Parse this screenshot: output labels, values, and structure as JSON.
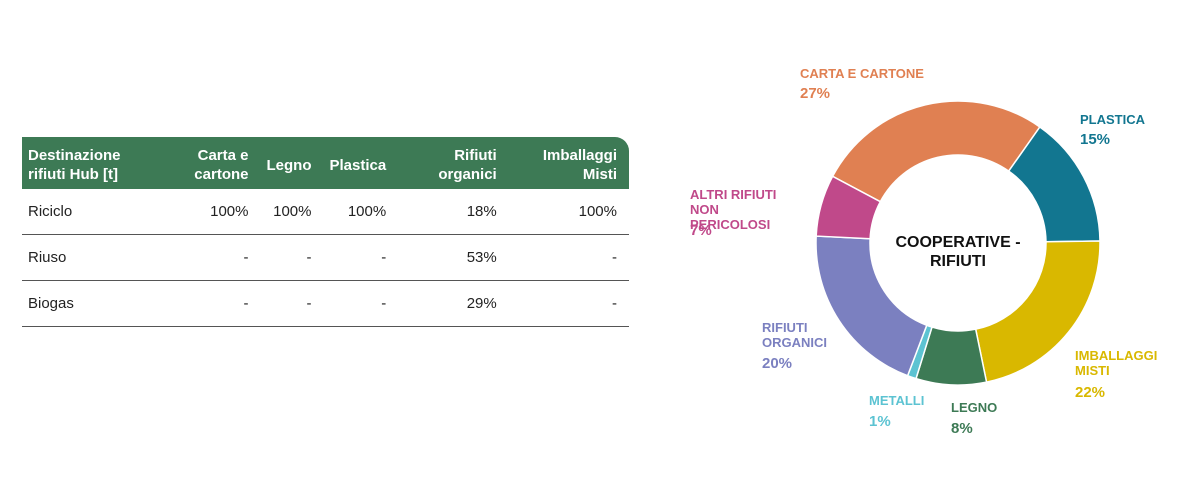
{
  "table": {
    "header": [
      "Destinazione rifiuti Hub [t]",
      "Carta e cartone",
      "Legno",
      "Plastica",
      "Rifiuti organici",
      "Imballaggi Misti"
    ],
    "rows": [
      [
        "Riciclo",
        "100%",
        "100%",
        "100%",
        "18%",
        "100%"
      ],
      [
        "Riuso",
        "-",
        "-",
        "-",
        "53%",
        "-"
      ],
      [
        "Biogas",
        "-",
        "-",
        "-",
        "29%",
        "-"
      ]
    ]
  },
  "chart_data": {
    "type": "pie",
    "title": "COOPERATIVE - RIFIUTI",
    "categories": [
      "CARTA E CARTONE",
      "PLASTICA",
      "IMBALLAGGI MISTI",
      "LEGNO",
      "METALLI",
      "RIFIUTI ORGANICI",
      "ALTRI RIFIUTI NON PERICOLOSI"
    ],
    "values": [
      27,
      15,
      22,
      8,
      1,
      20,
      7
    ],
    "value_labels": [
      "27%",
      "15%",
      "22%",
      "8%",
      "1%",
      "20%",
      "7%"
    ],
    "colors": [
      "#e08052",
      "#127690",
      "#d9b800",
      "#3d7a55",
      "#5cc3d2",
      "#7b80c0",
      "#c0498a"
    ]
  }
}
